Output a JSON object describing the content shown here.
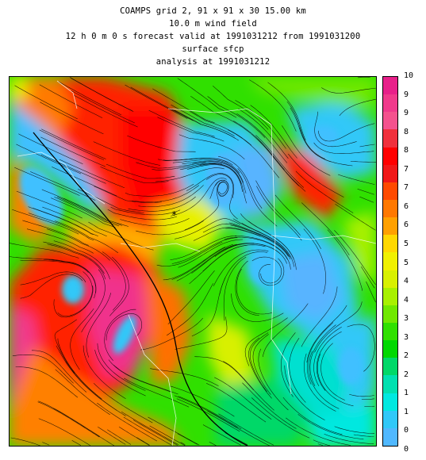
{
  "header": {
    "line1": "COAMPS grid 2,  91 x  91 x 30    15.00 km",
    "line2": "10.0 m wind field",
    "line3": "12 h  0 m  0 s forecast valid at 1991031212 from 1991031200",
    "line4": "surface sfcp",
    "line5": "analysis at 1991031212"
  },
  "colorbar": {
    "labels": [
      "10",
      "9",
      "9",
      "8",
      "8",
      "7",
      "7",
      "6",
      "6",
      "5",
      "5",
      "4",
      "4",
      "3",
      "3",
      "2",
      "2",
      "1",
      "1",
      "0",
      "0"
    ],
    "colors": [
      "#e8208a",
      "#f03a8c",
      "#f4528e",
      "#f0303c",
      "#ff0000",
      "#f01818",
      "#ff4a00",
      "#ff7800",
      "#ffa000",
      "#ffd800",
      "#f0f000",
      "#d8f000",
      "#a8f000",
      "#70e800",
      "#30e000",
      "#00d800",
      "#00d868",
      "#00e0b0",
      "#00e8e0",
      "#30c8f8",
      "#50b8ff"
    ]
  },
  "map": {
    "base_color": "#30e000",
    "marker_symbol": "*"
  }
}
